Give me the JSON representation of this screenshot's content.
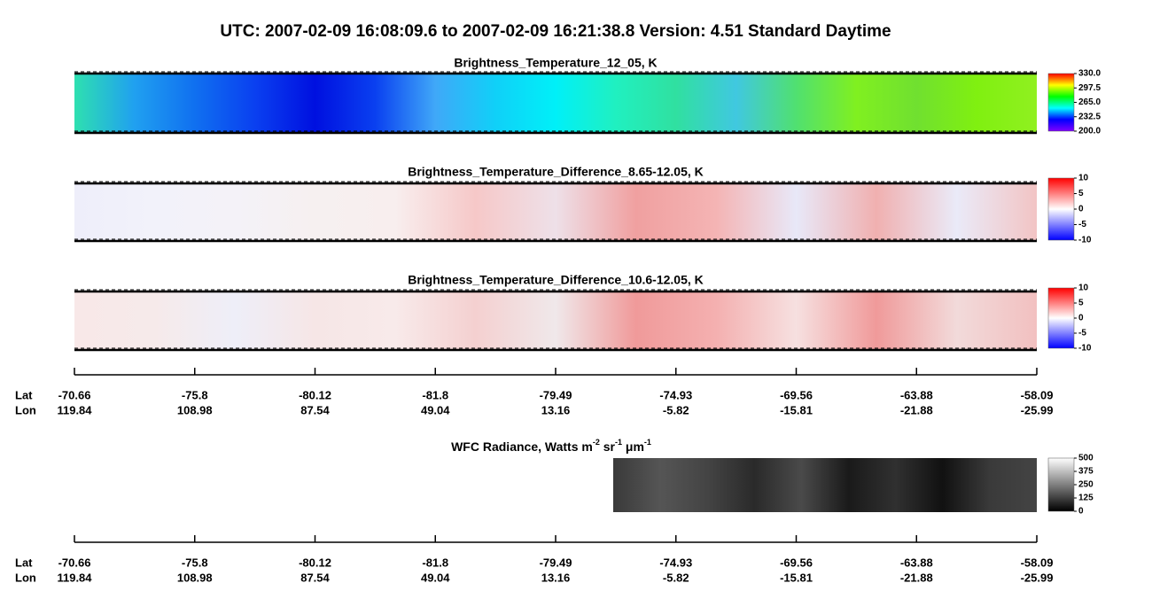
{
  "title": "UTC:  2007-02-09   16:08:09.6  to  2007-02-09   16:21:38.8    Version: 4.51  Standard Daytime",
  "chart_data": [
    {
      "type": "heatmap",
      "title": "Brightness_Temperature_12_05, K",
      "colormap": [
        "#8000ff",
        "#0000ff",
        "#00ffff",
        "#00ff00",
        "#ffff00",
        "#ff0000"
      ],
      "ylim": [
        200,
        330
      ],
      "yticks": [
        {
          "value": 200,
          "label": "200.0"
        },
        {
          "value": 232.5,
          "label": "232.5"
        },
        {
          "value": 265,
          "label": "265.0"
        },
        {
          "value": 297.5,
          "label": "297.5"
        },
        {
          "value": 330,
          "label": "330.0"
        }
      ]
    },
    {
      "type": "heatmap",
      "title": "Brightness_Temperature_Difference_8.65-12.05, K",
      "colormap": [
        "#0000ff",
        "#ffffff",
        "#ff0000"
      ],
      "ylim": [
        -10,
        10
      ],
      "yticks": [
        -10,
        -5,
        0,
        5,
        10
      ]
    },
    {
      "type": "heatmap",
      "title": "Brightness_Temperature_Difference_10.6-12.05, K",
      "colormap": [
        "#0000ff",
        "#ffffff",
        "#ff0000"
      ],
      "ylim": [
        -10,
        10
      ],
      "yticks": [
        -10,
        -5,
        0,
        5,
        10
      ]
    },
    {
      "type": "heatmap",
      "title": [
        {
          "text": "WFC Radiance, Watts m",
          "sup": false
        },
        {
          "text": "-2",
          "sup": true
        },
        {
          "text": " sr",
          "sup": false
        },
        {
          "text": "-1",
          "sup": true
        },
        {
          "text": " μm",
          "sup": false
        },
        {
          "text": "-1",
          "sup": true
        }
      ],
      "colormap": [
        "#000000",
        "#ffffff"
      ],
      "ylim": [
        0,
        500
      ],
      "yticks": [
        0,
        125,
        250,
        375,
        500
      ]
    }
  ],
  "axes": [
    {
      "lat_label": "Lat",
      "lon_label": "Lon",
      "lat": [
        -70.66,
        -75.8,
        -80.12,
        -81.8,
        -79.49,
        -74.93,
        -69.56,
        -63.88,
        -58.09
      ],
      "lon": [
        119.84,
        108.98,
        87.54,
        49.04,
        13.16,
        -5.82,
        -15.81,
        -21.88,
        -25.99
      ]
    },
    {
      "lat_label": "Lat",
      "lon_label": "Lon",
      "lat": [
        -70.66,
        -75.8,
        -80.12,
        -81.8,
        -79.49,
        -74.93,
        -69.56,
        -63.88,
        -58.09
      ],
      "lon": [
        119.84,
        108.98,
        87.54,
        49.04,
        13.16,
        -5.82,
        -15.81,
        -21.88,
        -25.99
      ]
    }
  ]
}
